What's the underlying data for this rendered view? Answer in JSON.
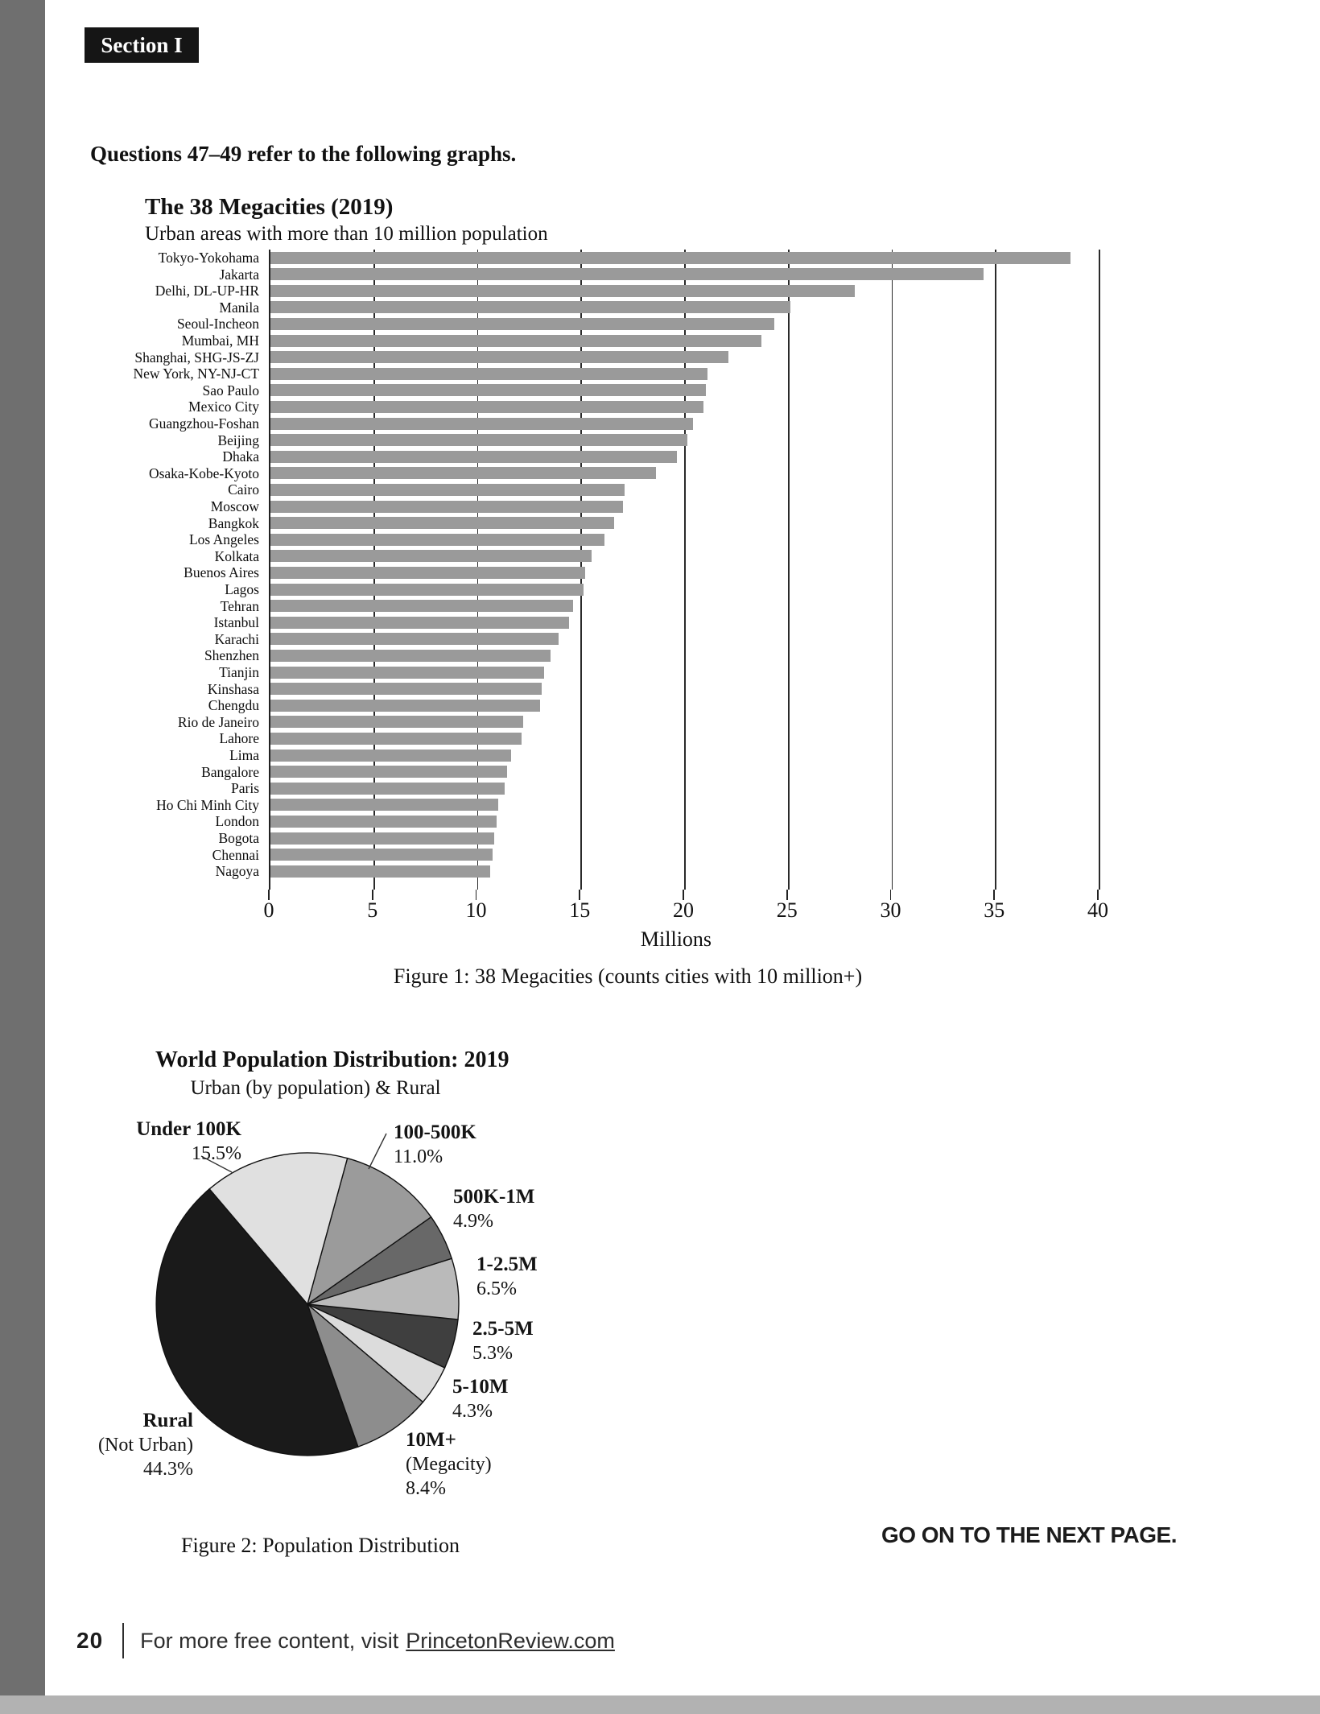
{
  "page": {
    "section_tab": "Section I",
    "intro": "Questions 47–49 refer to the following graphs.",
    "go_on": "GO ON TO THE NEXT PAGE.",
    "footer": {
      "page_number": "20",
      "text": "For more free content, visit",
      "link": "PrincetonReview.com"
    }
  },
  "chart_data": [
    {
      "type": "bar",
      "orientation": "horizontal",
      "title": "The 38 Megacities (2019)",
      "subtitle": "Urban areas with more than 10 million population",
      "xlabel": "Millions",
      "caption": "Figure 1: 38 Megacities (counts cities with 10 million+)",
      "xlim": [
        0,
        40
      ],
      "xticks": [
        0,
        5,
        10,
        15,
        20,
        25,
        30,
        35,
        40
      ],
      "grid": "vertical lines every 5 million behind bars",
      "bar_color": "#9a9a9a",
      "units": "millions of people",
      "categories": [
        "Tokyo-Yokohama",
        "Jakarta",
        "Delhi, DL-UP-HR",
        "Manila",
        "Seoul-Incheon",
        "Mumbai, MH",
        "Shanghai, SHG-JS-ZJ",
        "New York, NY-NJ-CT",
        "Sao Paulo",
        "Mexico City",
        "Guangzhou-Foshan",
        "Beijing",
        "Dhaka",
        "Osaka-Kobe-Kyoto",
        "Cairo",
        "Moscow",
        "Bangkok",
        "Los Angeles",
        "Kolkata",
        "Buenos Aires",
        "Lagos",
        "Tehran",
        "Istanbul",
        "Karachi",
        "Shenzhen",
        "Tianjin",
        "Kinshasa",
        "Chengdu",
        "Rio de Janeiro",
        "Lahore",
        "Lima",
        "Bangalore",
        "Paris",
        "Ho Chi Minh City",
        "London",
        "Bogota",
        "Chennai",
        "Nagoya"
      ],
      "values": [
        38.6,
        34.4,
        28.2,
        25.1,
        24.3,
        23.7,
        22.1,
        21.1,
        21.0,
        20.9,
        20.4,
        20.1,
        19.6,
        18.6,
        17.1,
        17.0,
        16.6,
        16.1,
        15.5,
        15.2,
        15.1,
        14.6,
        14.4,
        13.9,
        13.5,
        13.2,
        13.1,
        13.0,
        12.2,
        12.1,
        11.6,
        11.4,
        11.3,
        11.0,
        10.9,
        10.8,
        10.7,
        10.6
      ]
    },
    {
      "type": "pie",
      "title": "World Population Distribution: 2019",
      "subtitle": "Urban (by population) & Rural",
      "caption": "Figure 2: Population Distribution",
      "start_angle_deg": -40.4,
      "direction": "clockwise",
      "slices": [
        {
          "label": "Under 100K",
          "pct": 15.5,
          "display": "15.5%",
          "color": "#e0e0e0"
        },
        {
          "label": "100-500K",
          "pct": 11.0,
          "display": "11.0%",
          "color": "#9b9b9b"
        },
        {
          "label": "500K-1M",
          "pct": 4.9,
          "display": "4.9%",
          "color": "#686868"
        },
        {
          "label": "1-2.5M",
          "pct": 6.5,
          "display": "6.5%",
          "color": "#bababa"
        },
        {
          "label": "2.5-5M",
          "pct": 5.3,
          "display": "5.3%",
          "color": "#3f3f3f"
        },
        {
          "label": "5-10M",
          "pct": 4.3,
          "display": "4.3%",
          "color": "#dcdcdc"
        },
        {
          "label": "10M+",
          "sublabel": "(Megacity)",
          "pct": 8.4,
          "display": "8.4%",
          "color": "#8d8d8d"
        },
        {
          "label": "Rural",
          "sublabel": "(Not Urban)",
          "pct": 44.3,
          "display": "44.3%",
          "color": "#1a1a1a"
        }
      ]
    }
  ]
}
